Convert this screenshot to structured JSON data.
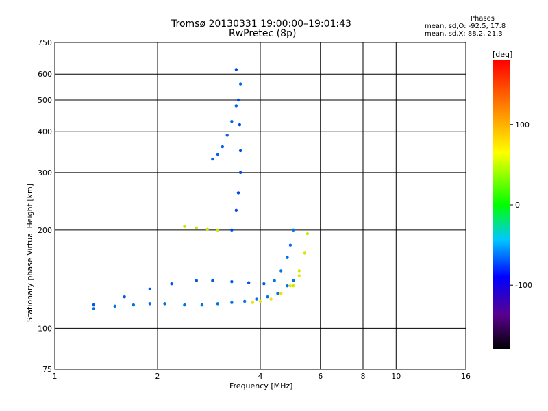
{
  "header": {
    "title_line1": "Tromsø 20130331 19:00:00–19:01:43",
    "title_line2": "RwPretec (8p)",
    "legend": {
      "heading": "Phases",
      "line_o": "mean, sd,O: -92.5, 17.8",
      "line_x": "mean, sd,X: 88.2, 21.3"
    }
  },
  "colorbar": {
    "unit_label": "[deg]",
    "ticks": [
      "100",
      "0",
      "-100"
    ]
  },
  "chart_data": {
    "type": "scatter",
    "xlabel": "Frequency [MHz]",
    "ylabel": "Stationary phase Virtual Height [km]",
    "xscale": "log",
    "yscale": "log",
    "xlim": [
      1,
      16
    ],
    "ylim": [
      75,
      750
    ],
    "x_ticks": [
      1,
      2,
      4,
      6,
      8,
      10,
      16
    ],
    "y_ticks": [
      75,
      100,
      200,
      300,
      400,
      500,
      600,
      750
    ],
    "grid": true,
    "colorbar_range": [
      -180,
      180
    ],
    "traces": [
      {
        "mode": "O",
        "x": [
          1.3,
          1.5,
          1.7,
          1.9,
          2.1,
          2.4,
          2.7,
          3.0,
          3.3,
          3.6,
          3.9,
          4.2,
          4.5,
          4.8,
          5.0
        ],
        "y": [
          115,
          117,
          118,
          119,
          119,
          118,
          118,
          119,
          120,
          121,
          123,
          125,
          128,
          135,
          140
        ],
        "phase": -100
      },
      {
        "mode": "O",
        "x": [
          1.3,
          1.6,
          1.9,
          2.2,
          2.6,
          2.9,
          3.3,
          3.7,
          4.1
        ],
        "y": [
          118,
          125,
          132,
          137,
          140,
          140,
          139,
          138,
          137
        ],
        "phase": -110
      },
      {
        "mode": "O",
        "x": [
          3.3,
          3.4,
          3.45,
          3.5,
          3.5,
          3.48,
          3.45,
          3.4
        ],
        "y": [
          200,
          230,
          260,
          300,
          350,
          420,
          500,
          620
        ],
        "phase": -115
      },
      {
        "mode": "O",
        "x": [
          2.9,
          3.0,
          3.1,
          3.2,
          3.3,
          3.4,
          3.5
        ],
        "y": [
          330,
          340,
          360,
          390,
          430,
          480,
          560
        ],
        "phase": -105
      },
      {
        "mode": "O",
        "x": [
          4.4,
          4.6,
          4.8,
          4.9,
          5.0
        ],
        "y": [
          140,
          150,
          165,
          180,
          200
        ],
        "phase": -100
      },
      {
        "mode": "X",
        "x": [
          3.8,
          4.0,
          4.3,
          4.6,
          4.9,
          5.2
        ],
        "y": [
          120,
          121,
          123,
          128,
          135,
          145
        ],
        "phase": 100
      },
      {
        "mode": "X",
        "x": [
          2.4,
          2.6,
          2.8,
          3.0
        ],
        "y": [
          205,
          203,
          201,
          200
        ],
        "phase": 90
      },
      {
        "mode": "X",
        "x": [
          5.0,
          5.2,
          5.4,
          5.5
        ],
        "y": [
          135,
          150,
          170,
          195
        ],
        "phase": 95
      }
    ]
  }
}
